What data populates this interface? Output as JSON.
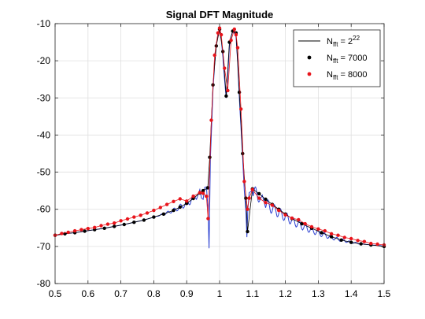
{
  "chart_data": {
    "type": "line",
    "title": "Signal DFT Magnitude",
    "xlabel": "",
    "ylabel": "",
    "xlim": [
      0.5,
      1.5
    ],
    "ylim": [
      -80,
      -10
    ],
    "x_ticks": [
      "0.5",
      "0.6",
      "0.7",
      "0.8",
      "0.9",
      "1",
      "1.1",
      "1.2",
      "1.3",
      "1.4",
      "1.5"
    ],
    "y_ticks": [
      "-80",
      "-70",
      "-60",
      "-50",
      "-40",
      "-30",
      "-20",
      "-10"
    ],
    "grid": true,
    "legend_position": "top-right",
    "legend": [
      {
        "base": "N",
        "sub": "fft",
        "eq": " = 2",
        "sup": "22",
        "marker": "line",
        "color": "#000000"
      },
      {
        "base": "N",
        "sub": "fft",
        "eq": " = 7000",
        "sup": "",
        "marker": "dot",
        "color": "#000000"
      },
      {
        "base": "N",
        "sub": "fft",
        "eq": " = 8000",
        "sup": "",
        "marker": "dot",
        "color": "#e8141b"
      }
    ],
    "series": [
      {
        "name": "Nfft = 2^22",
        "style": "line",
        "color": "#2a3fd1",
        "x": [
          0.5,
          0.53,
          0.56,
          0.59,
          0.62,
          0.65,
          0.68,
          0.71,
          0.74,
          0.77,
          0.8,
          0.83,
          0.86,
          0.88,
          0.9,
          0.92,
          0.94,
          0.95,
          0.96,
          0.965,
          0.968,
          0.972,
          0.98,
          0.985,
          0.99,
          0.995,
          1.0,
          1.005,
          1.01,
          1.015,
          1.02,
          1.025,
          1.03,
          1.035,
          1.04,
          1.045,
          1.05,
          1.055,
          1.06,
          1.065,
          1.07,
          1.075,
          1.08,
          1.083,
          1.086,
          1.09,
          1.1,
          1.12,
          1.14,
          1.16,
          1.18,
          1.2,
          1.22,
          1.25,
          1.28,
          1.31,
          1.34,
          1.37,
          1.4,
          1.43,
          1.46,
          1.49,
          1.5
        ],
        "y": [
          -67.0,
          -66.6,
          -66.3,
          -65.9,
          -65.5,
          -65.1,
          -64.6,
          -64.1,
          -63.5,
          -62.9,
          -62.1,
          -61.3,
          -60.3,
          -59.4,
          -58.4,
          -57.1,
          -55.6,
          -56.5,
          -54.0,
          -60.0,
          -70.5,
          -46.5,
          -28.0,
          -21.0,
          -15.5,
          -13.0,
          -11.5,
          -14.0,
          -19.0,
          -25.0,
          -30.0,
          -24.0,
          -16.0,
          -13.5,
          -12.0,
          -12.5,
          -13.5,
          -20.5,
          -30.0,
          -38.0,
          -46.0,
          -55.0,
          -60.5,
          -67.5,
          -60.0,
          -55.5,
          -55.0,
          -56.5,
          -58.5,
          -59.8,
          -60.9,
          -62.0,
          -63.1,
          -64.5,
          -65.7,
          -66.7,
          -67.6,
          -68.3,
          -68.9,
          -69.3,
          -69.6,
          -69.8,
          -70.0
        ]
      },
      {
        "name": "Nfft = 7000",
        "style": "markers",
        "color": "#000000",
        "x": [
          0.5,
          0.53,
          0.56,
          0.59,
          0.62,
          0.65,
          0.68,
          0.71,
          0.74,
          0.77,
          0.8,
          0.83,
          0.86,
          0.88,
          0.9,
          0.92,
          0.94,
          0.95,
          0.964,
          0.97,
          0.98,
          0.99,
          1.0,
          1.01,
          1.02,
          1.03,
          1.04,
          1.05,
          1.06,
          1.07,
          1.08,
          1.085,
          1.1,
          1.12,
          1.14,
          1.16,
          1.18,
          1.2,
          1.22,
          1.25,
          1.28,
          1.31,
          1.34,
          1.37,
          1.4,
          1.43,
          1.46,
          1.5
        ],
        "y": [
          -67.0,
          -66.6,
          -66.3,
          -65.9,
          -65.5,
          -65.1,
          -64.6,
          -64.1,
          -63.5,
          -62.9,
          -62.1,
          -61.3,
          -60.3,
          -59.4,
          -58.4,
          -57.1,
          -55.6,
          -55.0,
          -54.2,
          -46.0,
          -26.5,
          -16.0,
          -11.5,
          -17.5,
          -29.5,
          -15.0,
          -12.0,
          -12.5,
          -28.5,
          -45.0,
          -57.0,
          -66.0,
          -54.5,
          -55.8,
          -57.3,
          -58.7,
          -60.0,
          -61.3,
          -62.5,
          -63.9,
          -65.1,
          -66.3,
          -67.4,
          -68.3,
          -68.9,
          -69.3,
          -69.6,
          -70.0
        ]
      },
      {
        "name": "Nfft = 8000",
        "style": "markers",
        "color": "#e8141b",
        "x": [
          0.5,
          0.52,
          0.54,
          0.56,
          0.58,
          0.6,
          0.62,
          0.64,
          0.66,
          0.68,
          0.7,
          0.72,
          0.74,
          0.76,
          0.78,
          0.8,
          0.82,
          0.84,
          0.86,
          0.88,
          0.9,
          0.92,
          0.94,
          0.95,
          0.96,
          0.965,
          0.975,
          0.985,
          0.995,
          1.0,
          1.005,
          1.015,
          1.025,
          1.035,
          1.045,
          1.05,
          1.055,
          1.065,
          1.075,
          1.085,
          1.09,
          1.1,
          1.12,
          1.14,
          1.16,
          1.18,
          1.2,
          1.22,
          1.24,
          1.26,
          1.28,
          1.3,
          1.32,
          1.34,
          1.36,
          1.38,
          1.4,
          1.42,
          1.44,
          1.46,
          1.48,
          1.5
        ],
        "y": [
          -67.0,
          -66.5,
          -66.2,
          -65.8,
          -65.5,
          -65.2,
          -64.9,
          -64.4,
          -64.0,
          -63.7,
          -63.1,
          -62.6,
          -62.1,
          -61.6,
          -61.0,
          -60.3,
          -59.5,
          -58.7,
          -57.9,
          -57.2,
          -57.8,
          -56.5,
          -55.5,
          -55.7,
          -56.5,
          -62.5,
          -36.0,
          -18.5,
          -12.5,
          -11.2,
          -13.0,
          -22.0,
          -28.0,
          -14.5,
          -11.5,
          -13.0,
          -16.5,
          -33.0,
          -52.5,
          -60.0,
          -57.0,
          -54.7,
          -57.0,
          -58.2,
          -58.9,
          -60.3,
          -61.5,
          -62.4,
          -62.8,
          -63.9,
          -64.7,
          -65.3,
          -65.8,
          -66.6,
          -67.0,
          -67.6,
          -67.9,
          -68.4,
          -68.7,
          -69.2,
          -69.4,
          -69.6
        ]
      }
    ]
  }
}
